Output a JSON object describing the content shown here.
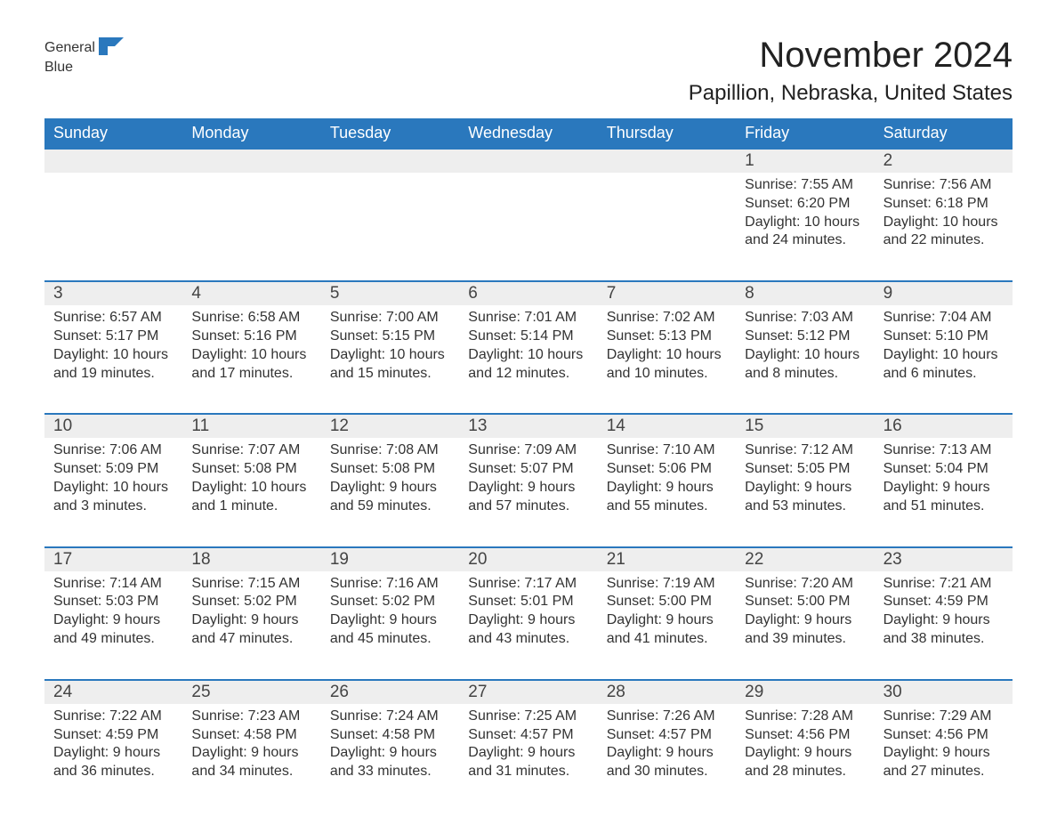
{
  "brand": {
    "word1": "General",
    "word2": "Blue",
    "brand_color": "#2a78bd"
  },
  "title": "November 2024",
  "location": "Papillion, Nebraska, United States",
  "colors": {
    "header_bg": "#2a78bd",
    "header_text": "#ffffff",
    "band_bg": "#eeeeee",
    "band_border": "#2a78bd",
    "body_text": "#333333",
    "page_bg": "#ffffff"
  },
  "weekdays": [
    "Sunday",
    "Monday",
    "Tuesday",
    "Wednesday",
    "Thursday",
    "Friday",
    "Saturday"
  ],
  "weeks": [
    {
      "days": [
        {
          "n": "",
          "sunrise": "",
          "sunset": "",
          "daylight": ""
        },
        {
          "n": "",
          "sunrise": "",
          "sunset": "",
          "daylight": ""
        },
        {
          "n": "",
          "sunrise": "",
          "sunset": "",
          "daylight": ""
        },
        {
          "n": "",
          "sunrise": "",
          "sunset": "",
          "daylight": ""
        },
        {
          "n": "",
          "sunrise": "",
          "sunset": "",
          "daylight": ""
        },
        {
          "n": "1",
          "sunrise": "Sunrise: 7:55 AM",
          "sunset": "Sunset: 6:20 PM",
          "daylight": "Daylight: 10 hours and 24 minutes."
        },
        {
          "n": "2",
          "sunrise": "Sunrise: 7:56 AM",
          "sunset": "Sunset: 6:18 PM",
          "daylight": "Daylight: 10 hours and 22 minutes."
        }
      ]
    },
    {
      "days": [
        {
          "n": "3",
          "sunrise": "Sunrise: 6:57 AM",
          "sunset": "Sunset: 5:17 PM",
          "daylight": "Daylight: 10 hours and 19 minutes."
        },
        {
          "n": "4",
          "sunrise": "Sunrise: 6:58 AM",
          "sunset": "Sunset: 5:16 PM",
          "daylight": "Daylight: 10 hours and 17 minutes."
        },
        {
          "n": "5",
          "sunrise": "Sunrise: 7:00 AM",
          "sunset": "Sunset: 5:15 PM",
          "daylight": "Daylight: 10 hours and 15 minutes."
        },
        {
          "n": "6",
          "sunrise": "Sunrise: 7:01 AM",
          "sunset": "Sunset: 5:14 PM",
          "daylight": "Daylight: 10 hours and 12 minutes."
        },
        {
          "n": "7",
          "sunrise": "Sunrise: 7:02 AM",
          "sunset": "Sunset: 5:13 PM",
          "daylight": "Daylight: 10 hours and 10 minutes."
        },
        {
          "n": "8",
          "sunrise": "Sunrise: 7:03 AM",
          "sunset": "Sunset: 5:12 PM",
          "daylight": "Daylight: 10 hours and 8 minutes."
        },
        {
          "n": "9",
          "sunrise": "Sunrise: 7:04 AM",
          "sunset": "Sunset: 5:10 PM",
          "daylight": "Daylight: 10 hours and 6 minutes."
        }
      ]
    },
    {
      "days": [
        {
          "n": "10",
          "sunrise": "Sunrise: 7:06 AM",
          "sunset": "Sunset: 5:09 PM",
          "daylight": "Daylight: 10 hours and 3 minutes."
        },
        {
          "n": "11",
          "sunrise": "Sunrise: 7:07 AM",
          "sunset": "Sunset: 5:08 PM",
          "daylight": "Daylight: 10 hours and 1 minute."
        },
        {
          "n": "12",
          "sunrise": "Sunrise: 7:08 AM",
          "sunset": "Sunset: 5:08 PM",
          "daylight": "Daylight: 9 hours and 59 minutes."
        },
        {
          "n": "13",
          "sunrise": "Sunrise: 7:09 AM",
          "sunset": "Sunset: 5:07 PM",
          "daylight": "Daylight: 9 hours and 57 minutes."
        },
        {
          "n": "14",
          "sunrise": "Sunrise: 7:10 AM",
          "sunset": "Sunset: 5:06 PM",
          "daylight": "Daylight: 9 hours and 55 minutes."
        },
        {
          "n": "15",
          "sunrise": "Sunrise: 7:12 AM",
          "sunset": "Sunset: 5:05 PM",
          "daylight": "Daylight: 9 hours and 53 minutes."
        },
        {
          "n": "16",
          "sunrise": "Sunrise: 7:13 AM",
          "sunset": "Sunset: 5:04 PM",
          "daylight": "Daylight: 9 hours and 51 minutes."
        }
      ]
    },
    {
      "days": [
        {
          "n": "17",
          "sunrise": "Sunrise: 7:14 AM",
          "sunset": "Sunset: 5:03 PM",
          "daylight": "Daylight: 9 hours and 49 minutes."
        },
        {
          "n": "18",
          "sunrise": "Sunrise: 7:15 AM",
          "sunset": "Sunset: 5:02 PM",
          "daylight": "Daylight: 9 hours and 47 minutes."
        },
        {
          "n": "19",
          "sunrise": "Sunrise: 7:16 AM",
          "sunset": "Sunset: 5:02 PM",
          "daylight": "Daylight: 9 hours and 45 minutes."
        },
        {
          "n": "20",
          "sunrise": "Sunrise: 7:17 AM",
          "sunset": "Sunset: 5:01 PM",
          "daylight": "Daylight: 9 hours and 43 minutes."
        },
        {
          "n": "21",
          "sunrise": "Sunrise: 7:19 AM",
          "sunset": "Sunset: 5:00 PM",
          "daylight": "Daylight: 9 hours and 41 minutes."
        },
        {
          "n": "22",
          "sunrise": "Sunrise: 7:20 AM",
          "sunset": "Sunset: 5:00 PM",
          "daylight": "Daylight: 9 hours and 39 minutes."
        },
        {
          "n": "23",
          "sunrise": "Sunrise: 7:21 AM",
          "sunset": "Sunset: 4:59 PM",
          "daylight": "Daylight: 9 hours and 38 minutes."
        }
      ]
    },
    {
      "days": [
        {
          "n": "24",
          "sunrise": "Sunrise: 7:22 AM",
          "sunset": "Sunset: 4:59 PM",
          "daylight": "Daylight: 9 hours and 36 minutes."
        },
        {
          "n": "25",
          "sunrise": "Sunrise: 7:23 AM",
          "sunset": "Sunset: 4:58 PM",
          "daylight": "Daylight: 9 hours and 34 minutes."
        },
        {
          "n": "26",
          "sunrise": "Sunrise: 7:24 AM",
          "sunset": "Sunset: 4:58 PM",
          "daylight": "Daylight: 9 hours and 33 minutes."
        },
        {
          "n": "27",
          "sunrise": "Sunrise: 7:25 AM",
          "sunset": "Sunset: 4:57 PM",
          "daylight": "Daylight: 9 hours and 31 minutes."
        },
        {
          "n": "28",
          "sunrise": "Sunrise: 7:26 AM",
          "sunset": "Sunset: 4:57 PM",
          "daylight": "Daylight: 9 hours and 30 minutes."
        },
        {
          "n": "29",
          "sunrise": "Sunrise: 7:28 AM",
          "sunset": "Sunset: 4:56 PM",
          "daylight": "Daylight: 9 hours and 28 minutes."
        },
        {
          "n": "30",
          "sunrise": "Sunrise: 7:29 AM",
          "sunset": "Sunset: 4:56 PM",
          "daylight": "Daylight: 9 hours and 27 minutes."
        }
      ]
    }
  ]
}
